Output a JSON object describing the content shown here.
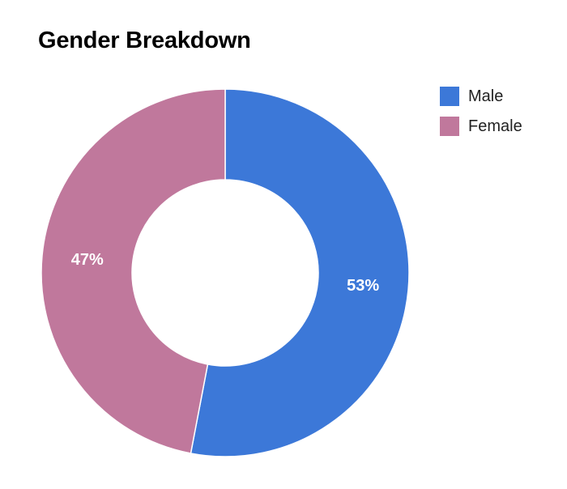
{
  "chart_data": {
    "type": "pie",
    "title": "Gender Breakdown",
    "donut": true,
    "categories": [
      "Male",
      "Female"
    ],
    "values": [
      53,
      47
    ],
    "data_labels": [
      "53%",
      "47%"
    ],
    "colors": [
      "#3c78d8",
      "#c0789c"
    ],
    "legend_position": "top-right"
  }
}
